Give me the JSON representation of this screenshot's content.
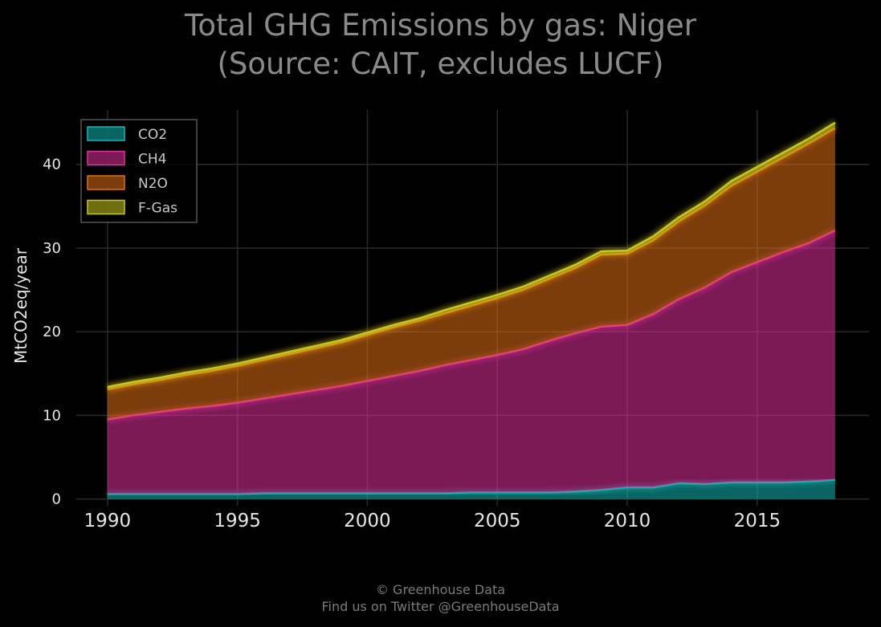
{
  "title_line1": "Total GHG Emissions by gas: Niger",
  "title_line2": "(Source: CAIT, excludes LUCF)",
  "credit_line1": "© Greenhouse Data",
  "credit_line2": "Find us on Twitter @GreenhouseData",
  "colors": {
    "background": "#000000",
    "grid": "#2a2a2a",
    "text": "#e6e6e6",
    "CO2": "#12b7b1",
    "CH4": "#e0309a",
    "N2O": "#e06f14",
    "F-Gas": "#c8c81a"
  },
  "chart_data": {
    "type": "area",
    "stacked": true,
    "title": "Total GHG Emissions by gas: Niger (Source: CAIT, excludes LUCF)",
    "xlabel": "",
    "ylabel": "MtCO2eq/year",
    "xlim": [
      1988.8,
      2019.3
    ],
    "ylim": [
      -0.8,
      46.5
    ],
    "xticks": [
      1990,
      1995,
      2000,
      2005,
      2010,
      2015
    ],
    "yticks": [
      0,
      10,
      20,
      30,
      40
    ],
    "grid": true,
    "legend_position": "top-left",
    "x": [
      1990,
      1991,
      1992,
      1993,
      1994,
      1995,
      1996,
      1997,
      1998,
      1999,
      2000,
      2001,
      2002,
      2003,
      2004,
      2005,
      2006,
      2007,
      2008,
      2009,
      2010,
      2011,
      2012,
      2013,
      2014,
      2015,
      2016,
      2017,
      2018
    ],
    "series": [
      {
        "name": "CO2",
        "values": [
          0.6,
          0.6,
          0.6,
          0.6,
          0.6,
          0.6,
          0.7,
          0.7,
          0.7,
          0.7,
          0.7,
          0.7,
          0.7,
          0.7,
          0.8,
          0.8,
          0.8,
          0.8,
          0.9,
          1.1,
          1.4,
          1.4,
          1.9,
          1.8,
          2.0,
          2.0,
          2.0,
          2.1,
          2.3
        ]
      },
      {
        "name": "CH4",
        "values": [
          8.9,
          9.4,
          9.8,
          10.2,
          10.5,
          10.9,
          11.3,
          11.8,
          12.3,
          12.8,
          13.4,
          14.0,
          14.6,
          15.3,
          15.8,
          16.4,
          17.1,
          18.1,
          18.9,
          19.5,
          19.4,
          20.7,
          22.0,
          23.5,
          25.1,
          26.3,
          27.5,
          28.5,
          29.8
        ]
      },
      {
        "name": "N2O",
        "values": [
          3.6,
          3.7,
          3.8,
          4.0,
          4.2,
          4.4,
          4.6,
          4.8,
          5.0,
          5.2,
          5.5,
          5.8,
          6.0,
          6.2,
          6.5,
          6.8,
          7.1,
          7.4,
          7.8,
          8.6,
          8.5,
          8.8,
          9.3,
          9.8,
          10.3,
          10.8,
          11.3,
          11.9,
          12.2
        ]
      },
      {
        "name": "F-Gas",
        "values": [
          0.3,
          0.3,
          0.3,
          0.3,
          0.3,
          0.3,
          0.3,
          0.3,
          0.3,
          0.3,
          0.3,
          0.3,
          0.3,
          0.4,
          0.4,
          0.4,
          0.4,
          0.4,
          0.4,
          0.4,
          0.4,
          0.5,
          0.5,
          0.5,
          0.6,
          0.6,
          0.6,
          0.6,
          0.7
        ]
      }
    ]
  }
}
